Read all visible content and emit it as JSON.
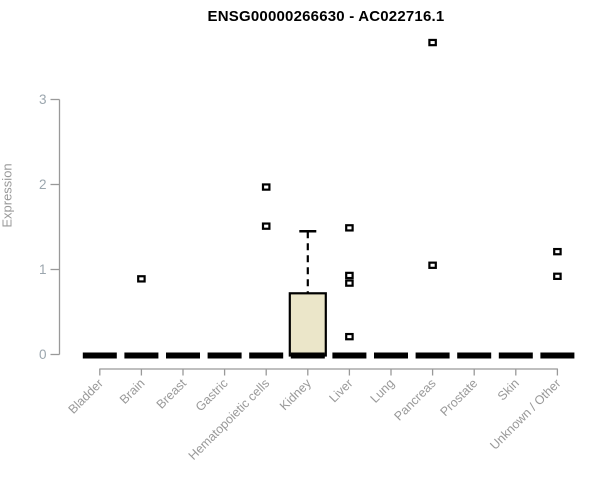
{
  "title": "ENSG00000266630 - AC022716.1",
  "chart_data": {
    "type": "box",
    "title": "ENSG00000266630 - AC022716.1",
    "xlabel": "",
    "ylabel": "Expression",
    "ylim": [
      0,
      3
    ],
    "yticks": [
      0,
      1,
      2,
      3
    ],
    "grid": false,
    "legend": "none",
    "categories": [
      "Bladder",
      "Brain",
      "Breast",
      "Gastric",
      "Hematopoietic cells",
      "Kidney",
      "Liver",
      "Lung",
      "Pancreas",
      "Prostate",
      "Skin",
      "Unknown / Other"
    ],
    "series": [
      {
        "category": "Bladder",
        "q1": 0,
        "median": 0,
        "q3": 0,
        "whisker_low": 0,
        "whisker_high": 0,
        "outliers": []
      },
      {
        "category": "Brain",
        "q1": 0,
        "median": 0,
        "q3": 0,
        "whisker_low": 0,
        "whisker_high": 0,
        "outliers": [
          0.89
        ]
      },
      {
        "category": "Breast",
        "q1": 0,
        "median": 0,
        "q3": 0,
        "whisker_low": 0,
        "whisker_high": 0,
        "outliers": []
      },
      {
        "category": "Gastric",
        "q1": 0,
        "median": 0,
        "q3": 0,
        "whisker_low": 0,
        "whisker_high": 0,
        "outliers": []
      },
      {
        "category": "Hematopoietic cells",
        "q1": 0,
        "median": 0,
        "q3": 0,
        "whisker_low": 0,
        "whisker_high": 0,
        "outliers": [
          1.97,
          1.51
        ]
      },
      {
        "category": "Kidney",
        "q1": 0,
        "median": 0,
        "q3": 0.72,
        "whisker_low": 0,
        "whisker_high": 1.45,
        "outliers": []
      },
      {
        "category": "Liver",
        "q1": 0,
        "median": 0,
        "q3": 0,
        "whisker_low": 0,
        "whisker_high": 0,
        "outliers": [
          1.49,
          0.93,
          0.84,
          0.21
        ]
      },
      {
        "category": "Lung",
        "q1": 0,
        "median": 0,
        "q3": 0,
        "whisker_low": 0,
        "whisker_high": 0,
        "outliers": []
      },
      {
        "category": "Pancreas",
        "q1": 0,
        "median": 0,
        "q3": 0,
        "whisker_low": 0,
        "whisker_high": 0,
        "outliers": [
          3.67,
          1.05
        ]
      },
      {
        "category": "Prostate",
        "q1": 0,
        "median": 0,
        "q3": 0,
        "whisker_low": 0,
        "whisker_high": 0,
        "outliers": []
      },
      {
        "category": "Skin",
        "q1": 0,
        "median": 0,
        "q3": 0,
        "whisker_low": 0,
        "whisker_high": 0,
        "outliers": []
      },
      {
        "category": "Unknown / Other",
        "q1": 0,
        "median": 0,
        "q3": 0,
        "whisker_low": 0,
        "whisker_high": 0,
        "outliers": [
          1.21,
          0.92
        ]
      }
    ],
    "colors": {
      "box_fill": "#EBE6C9",
      "box_border": "#000000",
      "zero_bar": "#000000",
      "outlier": "#000000",
      "axis": "#999999",
      "tick_label": "#9BA6AE",
      "category_label": "#999999",
      "title": "#000000"
    }
  }
}
